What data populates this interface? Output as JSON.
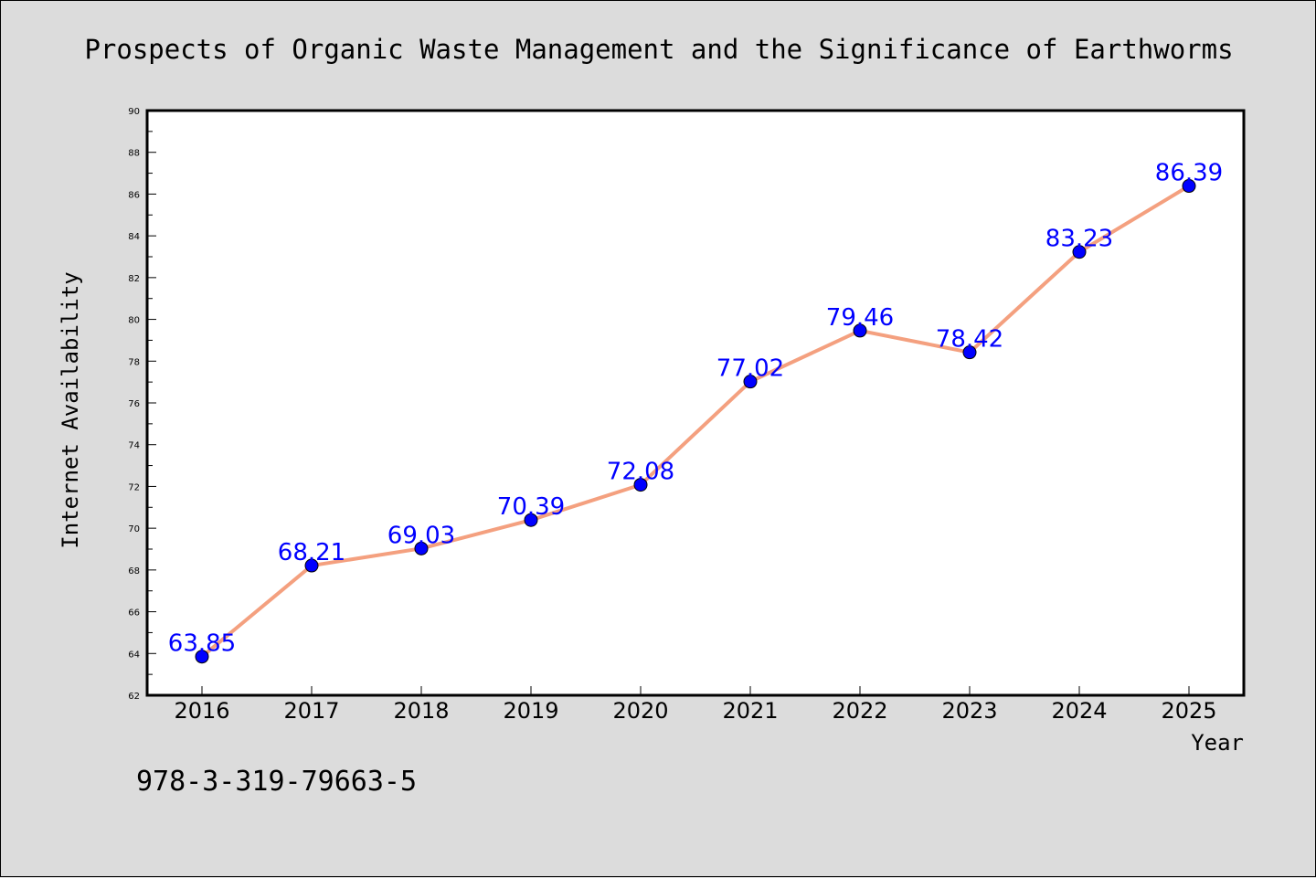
{
  "chart_data": {
    "type": "line",
    "title": "Prospects of Organic Waste Management and the Significance of Earthworms",
    "xlabel": "Year",
    "ylabel": "Internet Availability",
    "categories": [
      "2016",
      "2017",
      "2018",
      "2019",
      "2020",
      "2021",
      "2022",
      "2023",
      "2024",
      "2025"
    ],
    "values": [
      63.85,
      68.21,
      69.03,
      70.39,
      72.08,
      77.02,
      79.46,
      78.42,
      83.23,
      86.39
    ],
    "data_labels": [
      "63.85",
      "68.21",
      "69.03",
      "70.39",
      "72.08",
      "77.02",
      "79.46",
      "78.42",
      "83.23",
      "86.39"
    ],
    "ylim": [
      62,
      90
    ],
    "yticks": [
      "62",
      "64",
      "66",
      "68",
      "70",
      "72",
      "74",
      "76",
      "78",
      "80",
      "82",
      "84",
      "86",
      "88",
      "90"
    ],
    "grid": false,
    "legend": "none",
    "line_color": "#f4a07f",
    "marker_color": "#0000ff"
  },
  "footer": {
    "isbn": "978-3-319-79663-5"
  }
}
